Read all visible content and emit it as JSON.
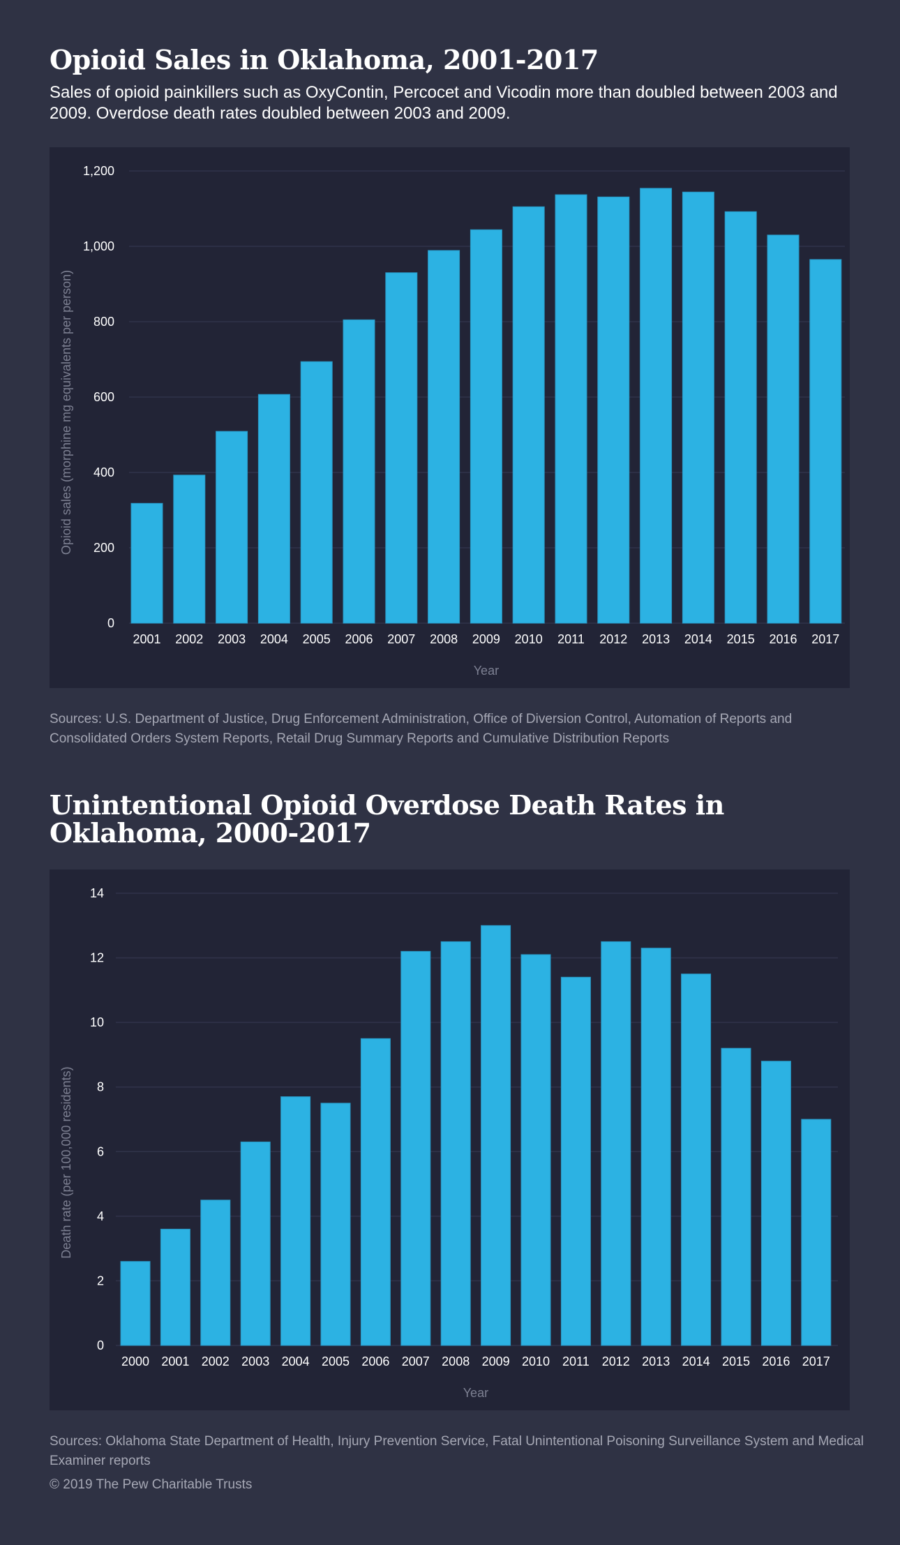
{
  "header": {
    "title": "Opioid Sales in Oklahoma, 2001-2017",
    "subtitle": "Sales of opioid painkillers such as OxyContin, Percocet and Vicodin more than doubled between 2003 and 2009. Overdose death rates doubled between 2003 and 2009."
  },
  "chart1_source": "Sources: U.S. Department of Justice, Drug Enforcement Administration, Office of Diversion Control, Automation of Reports and Consolidated Orders System Reports, Retail Drug Summary Reports and Cumulative Distribution Reports",
  "chart2_title": "Unintentional Opioid Overdose Death Rates in Oklahoma, 2000-2017",
  "chart2_source": "Sources: Oklahoma State Department of Health, Injury Prevention Service, Fatal Unintentional Poisoning Surveillance System and Medical Examiner reports",
  "copyright": "© 2019 The Pew Charitable Trusts",
  "colors": {
    "bar": "#2cb2e3",
    "background": "#2f3244",
    "panel": "#222436"
  },
  "chart_data": [
    {
      "type": "bar",
      "title": "Opioid Sales in Oklahoma, 2001-2017",
      "xlabel": "Year",
      "ylabel": "Opioid sales (morphine mg equivalents per person)",
      "ylim": [
        0,
        1200
      ],
      "yticks": [
        0,
        200,
        400,
        600,
        800,
        1000,
        1200
      ],
      "ytick_labels": [
        "0",
        "200",
        "400",
        "600",
        "800",
        "1,000",
        "1,200"
      ],
      "grid": true,
      "categories": [
        "2001",
        "2002",
        "2003",
        "2004",
        "2005",
        "2006",
        "2007",
        "2008",
        "2009",
        "2010",
        "2011",
        "2012",
        "2013",
        "2014",
        "2015",
        "2016",
        "2017"
      ],
      "values": [
        318,
        393,
        509,
        607,
        694,
        805,
        930,
        989,
        1044,
        1105,
        1137,
        1131,
        1154,
        1144,
        1092,
        1030,
        965
      ]
    },
    {
      "type": "bar",
      "title": "Unintentional Opioid Overdose Death Rates in Oklahoma, 2000-2017",
      "xlabel": "Year",
      "ylabel": "Death rate (per 100,000 residents)",
      "ylim": [
        0,
        14
      ],
      "yticks": [
        0,
        2,
        4,
        6,
        8,
        10,
        12,
        14
      ],
      "ytick_labels": [
        "0",
        "2",
        "4",
        "6",
        "8",
        "10",
        "12",
        "14"
      ],
      "grid": true,
      "categories": [
        "2000",
        "2001",
        "2002",
        "2003",
        "2004",
        "2005",
        "2006",
        "2007",
        "2008",
        "2009",
        "2010",
        "2011",
        "2012",
        "2013",
        "2014",
        "2015",
        "2016",
        "2017"
      ],
      "values": [
        2.6,
        3.6,
        4.5,
        6.3,
        7.7,
        7.5,
        9.5,
        12.2,
        12.5,
        13.0,
        12.1,
        11.4,
        12.5,
        12.3,
        11.5,
        9.2,
        8.8,
        7.0
      ]
    }
  ]
}
